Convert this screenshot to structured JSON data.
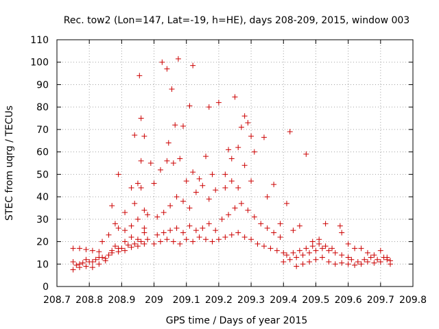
{
  "chart_data": {
    "type": "scatter",
    "title": "Rec. tow2 (Lon=147, Lat=-19, h=HE), days 208-209, 2015, window 003",
    "xlabel": "GPS time / Days of year 2015",
    "ylabel": "STEC from uqrg / TECUs",
    "xlim": [
      208.7,
      209.8
    ],
    "ylim": [
      0,
      110
    ],
    "xticks": [
      "208.7",
      "208.8",
      "208.9",
      "209",
      "209.1",
      "209.2",
      "209.3",
      "209.4",
      "209.5",
      "209.6",
      "209.7",
      "209.8"
    ],
    "yticks": [
      "0",
      "10",
      "20",
      "30",
      "40",
      "50",
      "60",
      "70",
      "80",
      "90",
      "100",
      "110"
    ],
    "grid": true,
    "marker": "plus",
    "color": "#cc0000",
    "series": [
      {
        "points": [
          [
            208.75,
            7.5
          ],
          [
            208.76,
            9.5
          ],
          [
            208.77,
            8.5
          ],
          [
            208.78,
            10.5
          ],
          [
            208.79,
            9
          ],
          [
            208.8,
            11
          ],
          [
            208.81,
            8.5
          ],
          [
            208.82,
            12
          ],
          [
            208.83,
            10
          ],
          [
            208.84,
            13
          ],
          [
            208.85,
            11.5
          ],
          [
            208.86,
            14
          ],
          [
            208.87,
            16
          ],
          [
            208.88,
            18
          ],
          [
            208.89,
            15.5
          ],
          [
            208.9,
            17
          ],
          [
            208.91,
            16
          ],
          [
            208.92,
            18.5
          ],
          [
            208.93,
            17.5
          ],
          [
            208.94,
            19
          ],
          [
            208.95,
            18
          ],
          [
            208.96,
            20
          ],
          [
            208.97,
            19
          ],
          [
            208.98,
            21
          ],
          [
            208.75,
            11
          ],
          [
            208.77,
            10
          ],
          [
            208.79,
            12
          ],
          [
            208.81,
            11
          ],
          [
            208.83,
            13
          ],
          [
            208.85,
            12.5
          ],
          [
            208.87,
            15
          ],
          [
            208.89,
            17
          ],
          [
            208.91,
            20
          ],
          [
            208.93,
            22
          ],
          [
            208.95,
            21
          ],
          [
            208.97,
            24
          ],
          [
            208.75,
            17
          ],
          [
            208.77,
            17
          ],
          [
            208.79,
            16.5
          ],
          [
            208.81,
            16
          ],
          [
            208.83,
            15.5
          ],
          [
            208.84,
            20
          ],
          [
            208.86,
            23
          ],
          [
            208.88,
            28
          ],
          [
            208.89,
            26
          ],
          [
            208.91,
            25
          ],
          [
            208.93,
            27
          ],
          [
            208.95,
            30
          ],
          [
            208.97,
            26
          ],
          [
            208.87,
            36
          ],
          [
            208.89,
            50
          ],
          [
            208.91,
            33
          ],
          [
            208.93,
            44
          ],
          [
            208.94,
            37
          ],
          [
            208.95,
            46
          ],
          [
            208.96,
            44
          ],
          [
            208.97,
            34
          ],
          [
            208.98,
            32
          ],
          [
            208.99,
            55
          ],
          [
            208.94,
            67.5
          ],
          [
            208.955,
            94
          ],
          [
            208.96,
            75
          ],
          [
            208.97,
            67
          ],
          [
            208.96,
            56
          ],
          [
            209.0,
            19
          ],
          [
            209.02,
            20
          ],
          [
            209.04,
            21
          ],
          [
            209.06,
            20
          ],
          [
            209.08,
            19
          ],
          [
            209.1,
            21
          ],
          [
            209.12,
            20
          ],
          [
            209.14,
            22
          ],
          [
            209.16,
            21
          ],
          [
            209.18,
            20
          ],
          [
            209.2,
            21
          ],
          [
            209.01,
            23
          ],
          [
            209.03,
            24
          ],
          [
            209.05,
            25
          ],
          [
            209.07,
            26
          ],
          [
            209.09,
            24
          ],
          [
            209.11,
            27
          ],
          [
            209.13,
            25
          ],
          [
            209.15,
            26
          ],
          [
            209.17,
            28
          ],
          [
            209.19,
            25
          ],
          [
            209.01,
            31
          ],
          [
            209.03,
            33
          ],
          [
            209.05,
            36
          ],
          [
            209.07,
            40
          ],
          [
            209.09,
            38
          ],
          [
            209.11,
            35
          ],
          [
            209.13,
            42
          ],
          [
            209.15,
            45
          ],
          [
            209.17,
            39
          ],
          [
            209.19,
            43
          ],
          [
            209.0,
            46
          ],
          [
            209.02,
            52
          ],
          [
            209.04,
            56
          ],
          [
            209.06,
            55
          ],
          [
            209.08,
            57
          ],
          [
            209.1,
            47
          ],
          [
            209.12,
            51
          ],
          [
            209.14,
            48
          ],
          [
            209.16,
            58
          ],
          [
            209.18,
            50
          ],
          [
            209.025,
            100
          ],
          [
            209.04,
            97
          ],
          [
            209.055,
            88
          ],
          [
            209.075,
            101.5
          ],
          [
            209.11,
            80.5
          ],
          [
            209.12,
            98.5
          ],
          [
            209.065,
            72
          ],
          [
            209.09,
            71.5
          ],
          [
            209.045,
            64
          ],
          [
            209.2,
            82
          ],
          [
            209.22,
            44
          ],
          [
            209.23,
            61
          ],
          [
            209.24,
            57
          ],
          [
            209.25,
            84.5
          ],
          [
            209.26,
            62
          ],
          [
            209.27,
            71
          ],
          [
            209.28,
            76
          ],
          [
            209.29,
            73
          ],
          [
            209.3,
            67
          ],
          [
            209.17,
            80
          ],
          [
            209.22,
            22
          ],
          [
            209.24,
            23
          ],
          [
            209.26,
            24
          ],
          [
            209.28,
            22
          ],
          [
            209.3,
            21
          ],
          [
            209.32,
            19
          ],
          [
            209.34,
            18
          ],
          [
            209.36,
            17
          ],
          [
            209.38,
            16
          ],
          [
            209.4,
            15
          ],
          [
            209.21,
            30
          ],
          [
            209.23,
            32
          ],
          [
            209.25,
            35
          ],
          [
            209.27,
            37
          ],
          [
            209.29,
            34
          ],
          [
            209.31,
            31
          ],
          [
            209.33,
            28
          ],
          [
            209.35,
            26
          ],
          [
            209.37,
            24
          ],
          [
            209.39,
            22
          ],
          [
            209.22,
            50
          ],
          [
            209.24,
            47
          ],
          [
            209.26,
            44
          ],
          [
            209.28,
            54
          ],
          [
            209.3,
            47
          ],
          [
            209.31,
            60
          ],
          [
            209.34,
            66.5
          ],
          [
            209.37,
            45.5
          ],
          [
            209.35,
            40
          ],
          [
            209.39,
            28
          ],
          [
            209.41,
            37
          ],
          [
            209.42,
            69
          ],
          [
            209.43,
            25
          ],
          [
            209.45,
            27
          ],
          [
            209.47,
            59
          ],
          [
            209.49,
            20
          ],
          [
            209.4,
            11
          ],
          [
            209.42,
            12
          ],
          [
            209.44,
            13
          ],
          [
            209.46,
            14
          ],
          [
            209.48,
            15
          ],
          [
            209.5,
            16
          ],
          [
            209.52,
            17
          ],
          [
            209.54,
            16
          ],
          [
            209.56,
            15
          ],
          [
            209.58,
            14
          ],
          [
            209.6,
            13
          ],
          [
            209.41,
            14
          ],
          [
            209.43,
            15
          ],
          [
            209.45,
            16
          ],
          [
            209.47,
            17
          ],
          [
            209.49,
            18
          ],
          [
            209.51,
            19
          ],
          [
            209.53,
            18
          ],
          [
            209.55,
            17
          ],
          [
            209.44,
            9
          ],
          [
            209.46,
            10
          ],
          [
            209.48,
            11
          ],
          [
            209.5,
            12
          ],
          [
            209.52,
            13
          ],
          [
            209.54,
            11
          ],
          [
            209.56,
            10
          ],
          [
            209.58,
            10.5
          ],
          [
            209.51,
            21
          ],
          [
            209.53,
            28
          ],
          [
            209.575,
            27
          ],
          [
            209.58,
            24
          ],
          [
            209.6,
            19
          ],
          [
            209.62,
            17
          ],
          [
            209.64,
            17
          ],
          [
            209.66,
            15
          ],
          [
            209.68,
            14
          ],
          [
            209.7,
            16
          ],
          [
            209.72,
            13
          ],
          [
            209.6,
            10
          ],
          [
            209.62,
            9.5
          ],
          [
            209.64,
            10
          ],
          [
            209.66,
            11
          ],
          [
            209.68,
            10.5
          ],
          [
            209.7,
            11
          ],
          [
            209.72,
            12
          ],
          [
            209.73,
            11.5
          ],
          [
            209.61,
            12
          ],
          [
            209.63,
            11
          ],
          [
            209.65,
            12
          ],
          [
            209.67,
            13
          ],
          [
            209.69,
            12
          ],
          [
            209.71,
            13
          ],
          [
            209.73,
            10
          ]
        ]
      }
    ]
  }
}
